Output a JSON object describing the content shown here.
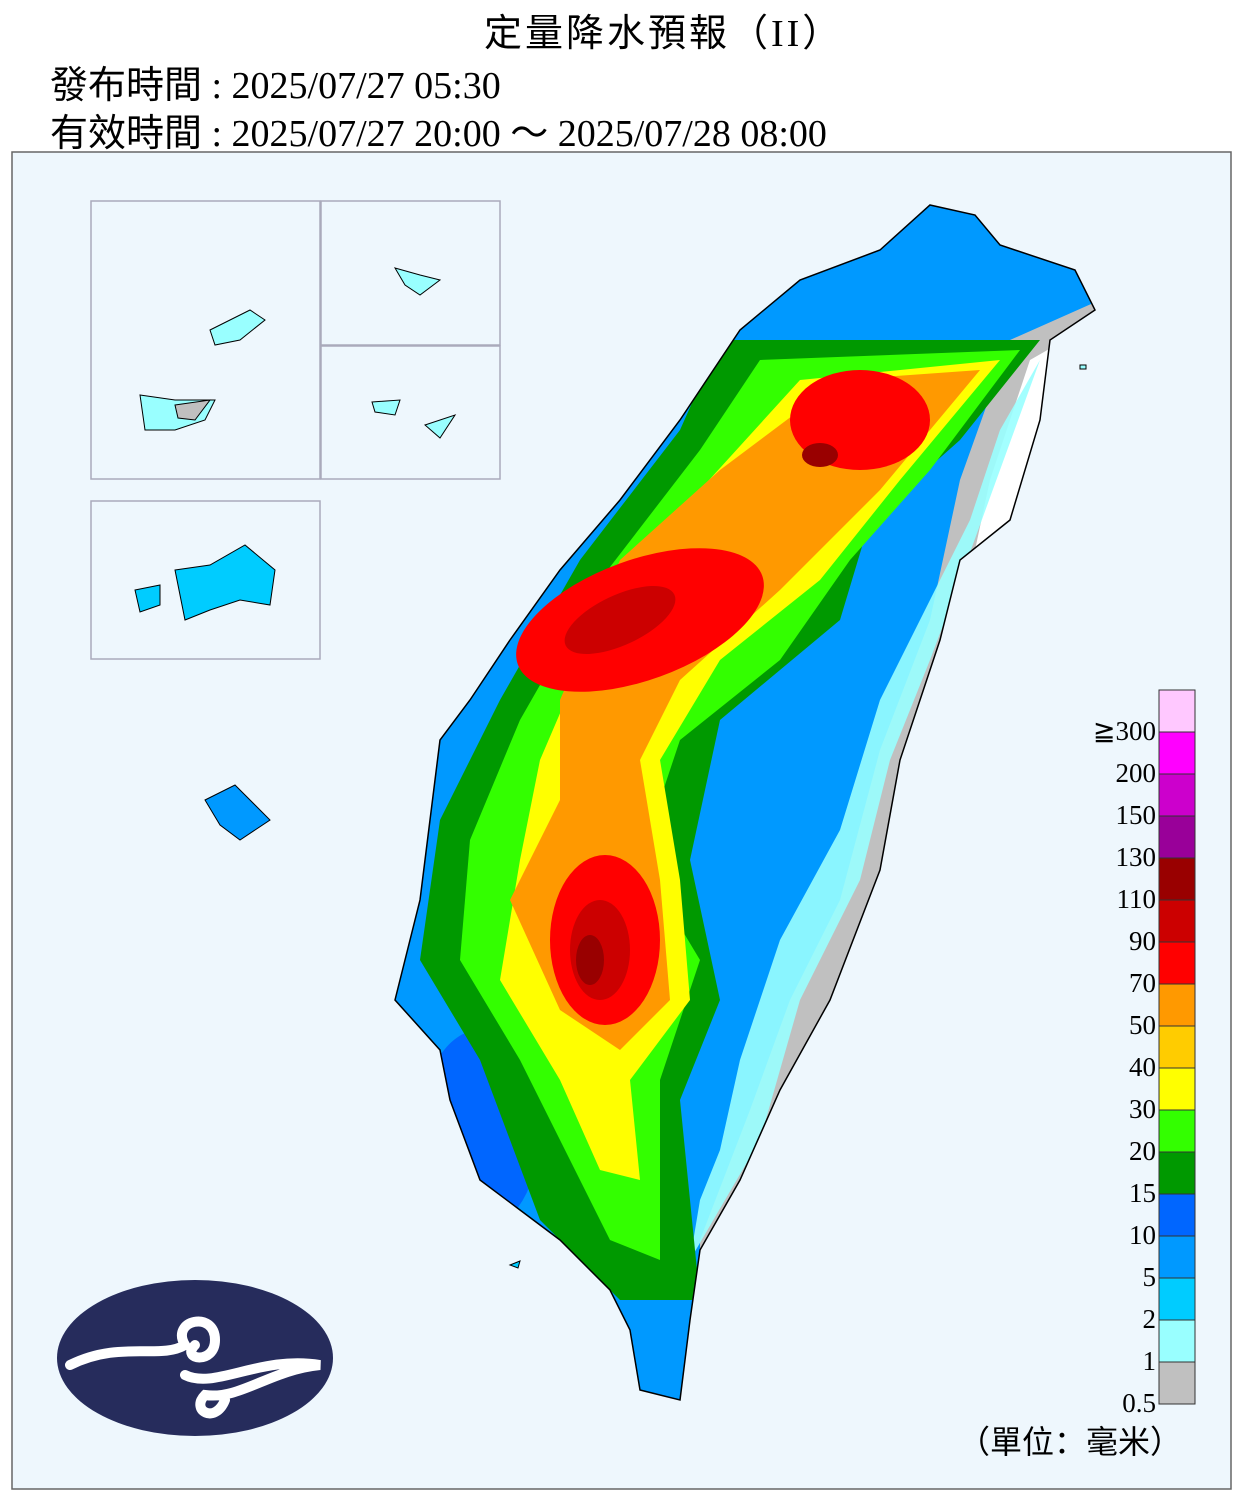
{
  "header": {
    "title": "定量降水預報（II）",
    "issued": "發布時間 : 2025/07/27 05:30",
    "valid": "有效時間 : 2025/07/27 20:00 ～ 2025/07/28 08:00"
  },
  "legend": {
    "levels": [
      {
        "label": "≧300",
        "color": "#ffc8ff"
      },
      {
        "label": "200",
        "color": "#ff00ff"
      },
      {
        "label": "150",
        "color": "#cc00cc"
      },
      {
        "label": "130",
        "color": "#990099"
      },
      {
        "label": "110",
        "color": "#990000"
      },
      {
        "label": "90",
        "color": "#cc0000"
      },
      {
        "label": "70",
        "color": "#ff0000"
      },
      {
        "label": "50",
        "color": "#ff9900"
      },
      {
        "label": "40",
        "color": "#ffcc00"
      },
      {
        "label": "30",
        "color": "#ffff00"
      },
      {
        "label": "20",
        "color": "#33ff00"
      },
      {
        "label": "15",
        "color": "#009900"
      },
      {
        "label": "10",
        "color": "#0066ff"
      },
      {
        "label": "5",
        "color": "#0099ff"
      },
      {
        "label": "2",
        "color": "#00ccff"
      },
      {
        "label": "1",
        "color": "#99ffff"
      },
      {
        "label": "0.5",
        "color": "#c0c0c0"
      }
    ],
    "unit": "（單位：毫米）"
  }
}
